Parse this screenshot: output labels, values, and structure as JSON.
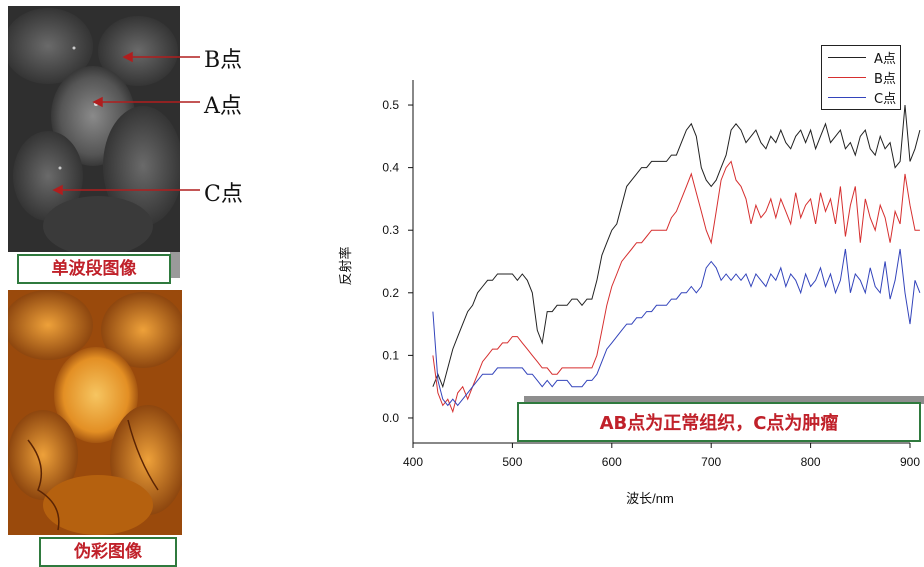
{
  "left_panel": {
    "caption_single_band": "单波段图像",
    "caption_false_color": "伪彩图像",
    "point_b": "B点",
    "point_a": "A点",
    "point_c": "C点"
  },
  "annotation": "AB点为正常组织，C点为肿瘤",
  "chart_data": {
    "type": "line",
    "xlabel": "波长/nm",
    "ylabel": "反射率",
    "xlim": [
      400,
      900
    ],
    "ylim": [
      -0.04,
      0.54
    ],
    "xticks": [
      400,
      500,
      600,
      700,
      800,
      900
    ],
    "yticks": [
      0.0,
      0.1,
      0.2,
      0.3,
      0.4,
      0.5
    ],
    "xtick_labels": [
      "400",
      "500",
      "600",
      "700",
      "800",
      "900"
    ],
    "ytick_labels": [
      "0.0",
      "0.1",
      "0.2",
      "0.3",
      "0.4",
      "0.5"
    ],
    "legend_position": "top-right",
    "series": [
      {
        "name": "A点",
        "color": "#222222",
        "x": [
          420,
          425,
          430,
          435,
          440,
          445,
          450,
          455,
          460,
          465,
          470,
          475,
          480,
          485,
          490,
          495,
          500,
          505,
          510,
          515,
          520,
          525,
          530,
          535,
          540,
          545,
          550,
          555,
          560,
          565,
          570,
          575,
          580,
          585,
          590,
          595,
          600,
          605,
          610,
          615,
          620,
          625,
          630,
          635,
          640,
          645,
          650,
          655,
          660,
          665,
          670,
          675,
          680,
          685,
          690,
          695,
          700,
          705,
          710,
          715,
          720,
          725,
          730,
          735,
          740,
          745,
          750,
          755,
          760,
          765,
          770,
          775,
          780,
          785,
          790,
          795,
          800,
          805,
          810,
          815,
          820,
          825,
          830,
          835,
          840,
          845,
          850,
          855,
          860,
          865,
          870,
          875,
          880,
          885,
          890,
          895,
          900,
          905,
          910
        ],
        "values": [
          0.05,
          0.07,
          0.05,
          0.08,
          0.11,
          0.13,
          0.15,
          0.17,
          0.18,
          0.2,
          0.21,
          0.22,
          0.22,
          0.23,
          0.23,
          0.23,
          0.23,
          0.22,
          0.23,
          0.22,
          0.2,
          0.14,
          0.12,
          0.17,
          0.17,
          0.18,
          0.18,
          0.18,
          0.19,
          0.19,
          0.18,
          0.19,
          0.19,
          0.22,
          0.26,
          0.28,
          0.3,
          0.31,
          0.34,
          0.37,
          0.38,
          0.39,
          0.4,
          0.4,
          0.41,
          0.41,
          0.41,
          0.41,
          0.42,
          0.42,
          0.44,
          0.46,
          0.47,
          0.45,
          0.4,
          0.38,
          0.37,
          0.38,
          0.4,
          0.42,
          0.46,
          0.47,
          0.46,
          0.44,
          0.45,
          0.46,
          0.44,
          0.43,
          0.45,
          0.44,
          0.46,
          0.44,
          0.43,
          0.45,
          0.46,
          0.44,
          0.46,
          0.43,
          0.45,
          0.47,
          0.44,
          0.45,
          0.46,
          0.43,
          0.44,
          0.42,
          0.45,
          0.46,
          0.43,
          0.42,
          0.45,
          0.43,
          0.44,
          0.4,
          0.41,
          0.5,
          0.41,
          0.43,
          0.46
        ]
      },
      {
        "name": "B点",
        "color": "#d62f2f",
        "x": [
          420,
          425,
          430,
          435,
          440,
          445,
          450,
          455,
          460,
          465,
          470,
          475,
          480,
          485,
          490,
          495,
          500,
          505,
          510,
          515,
          520,
          525,
          530,
          535,
          540,
          545,
          550,
          555,
          560,
          565,
          570,
          575,
          580,
          585,
          590,
          595,
          600,
          605,
          610,
          615,
          620,
          625,
          630,
          635,
          640,
          645,
          650,
          655,
          660,
          665,
          670,
          675,
          680,
          685,
          690,
          695,
          700,
          705,
          710,
          715,
          720,
          725,
          730,
          735,
          740,
          745,
          750,
          755,
          760,
          765,
          770,
          775,
          780,
          785,
          790,
          795,
          800,
          805,
          810,
          815,
          820,
          825,
          830,
          835,
          840,
          845,
          850,
          855,
          860,
          865,
          870,
          875,
          880,
          885,
          890,
          895,
          900,
          905,
          910
        ],
        "values": [
          0.1,
          0.04,
          0.02,
          0.03,
          0.01,
          0.04,
          0.05,
          0.03,
          0.05,
          0.07,
          0.09,
          0.1,
          0.11,
          0.11,
          0.12,
          0.12,
          0.13,
          0.13,
          0.12,
          0.11,
          0.1,
          0.09,
          0.08,
          0.08,
          0.07,
          0.07,
          0.08,
          0.08,
          0.08,
          0.08,
          0.08,
          0.08,
          0.08,
          0.1,
          0.14,
          0.18,
          0.21,
          0.23,
          0.25,
          0.26,
          0.27,
          0.28,
          0.28,
          0.29,
          0.3,
          0.3,
          0.3,
          0.3,
          0.32,
          0.33,
          0.35,
          0.37,
          0.39,
          0.36,
          0.33,
          0.3,
          0.28,
          0.33,
          0.38,
          0.4,
          0.41,
          0.38,
          0.37,
          0.35,
          0.31,
          0.34,
          0.32,
          0.33,
          0.35,
          0.32,
          0.35,
          0.33,
          0.31,
          0.36,
          0.32,
          0.34,
          0.35,
          0.31,
          0.36,
          0.33,
          0.35,
          0.31,
          0.37,
          0.29,
          0.34,
          0.37,
          0.28,
          0.35,
          0.32,
          0.3,
          0.34,
          0.32,
          0.28,
          0.33,
          0.31,
          0.39,
          0.34,
          0.3,
          0.3
        ]
      },
      {
        "name": "C点",
        "color": "#3344bb",
        "x": [
          420,
          425,
          430,
          435,
          440,
          445,
          450,
          455,
          460,
          465,
          470,
          475,
          480,
          485,
          490,
          495,
          500,
          505,
          510,
          515,
          520,
          525,
          530,
          535,
          540,
          545,
          550,
          555,
          560,
          565,
          570,
          575,
          580,
          585,
          590,
          595,
          600,
          605,
          610,
          615,
          620,
          625,
          630,
          635,
          640,
          645,
          650,
          655,
          660,
          665,
          670,
          675,
          680,
          685,
          690,
          695,
          700,
          705,
          710,
          715,
          720,
          725,
          730,
          735,
          740,
          745,
          750,
          755,
          760,
          765,
          770,
          775,
          780,
          785,
          790,
          795,
          800,
          805,
          810,
          815,
          820,
          825,
          830,
          835,
          840,
          845,
          850,
          855,
          860,
          865,
          870,
          875,
          880,
          885,
          890,
          895,
          900,
          905,
          910
        ],
        "values": [
          0.17,
          0.06,
          0.03,
          0.02,
          0.03,
          0.02,
          0.03,
          0.04,
          0.05,
          0.06,
          0.07,
          0.07,
          0.07,
          0.08,
          0.08,
          0.08,
          0.08,
          0.08,
          0.08,
          0.07,
          0.07,
          0.06,
          0.05,
          0.06,
          0.05,
          0.06,
          0.06,
          0.06,
          0.05,
          0.05,
          0.05,
          0.06,
          0.06,
          0.07,
          0.09,
          0.11,
          0.12,
          0.13,
          0.14,
          0.15,
          0.15,
          0.16,
          0.16,
          0.17,
          0.17,
          0.18,
          0.18,
          0.18,
          0.19,
          0.19,
          0.2,
          0.2,
          0.21,
          0.2,
          0.21,
          0.24,
          0.25,
          0.24,
          0.22,
          0.23,
          0.22,
          0.23,
          0.22,
          0.23,
          0.21,
          0.23,
          0.22,
          0.21,
          0.23,
          0.22,
          0.24,
          0.21,
          0.23,
          0.22,
          0.2,
          0.23,
          0.21,
          0.22,
          0.24,
          0.21,
          0.23,
          0.2,
          0.22,
          0.27,
          0.2,
          0.23,
          0.22,
          0.2,
          0.24,
          0.21,
          0.2,
          0.25,
          0.19,
          0.22,
          0.27,
          0.2,
          0.15,
          0.22,
          0.2
        ]
      }
    ]
  }
}
